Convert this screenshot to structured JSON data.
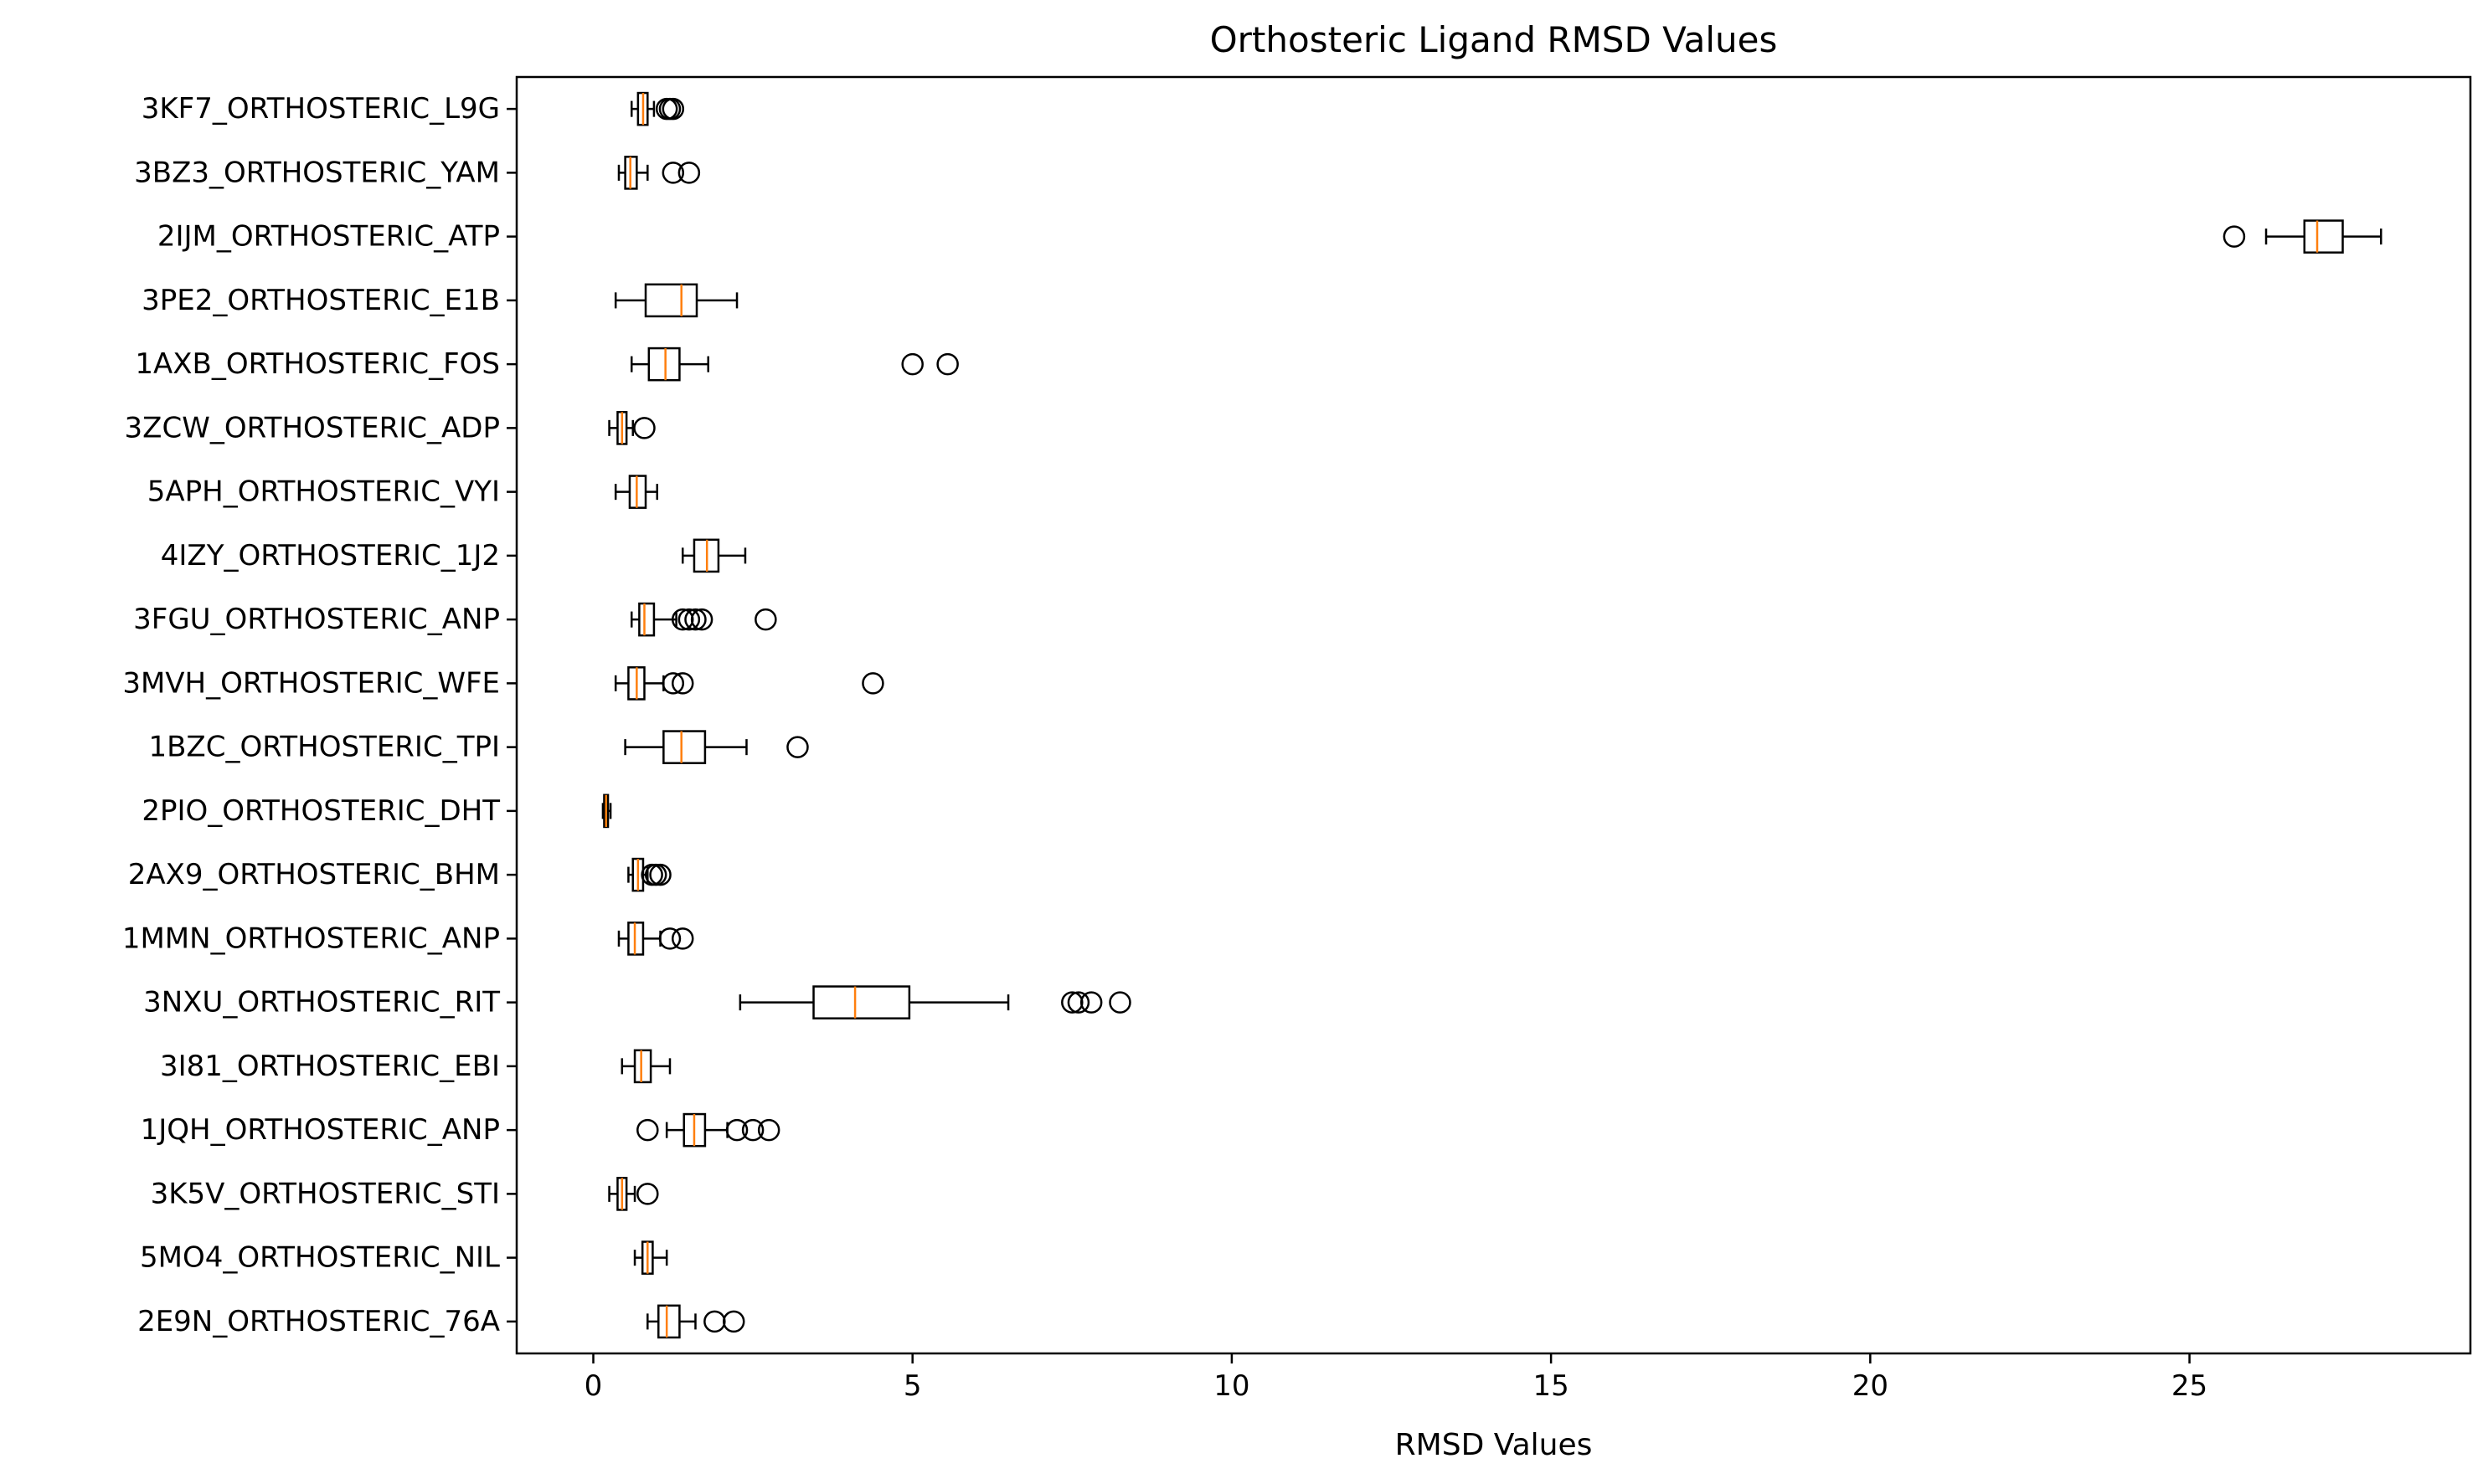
{
  "chart_data": {
    "type": "boxplot",
    "orientation": "horizontal",
    "title": "Orthosteric Ligand RMSD Values",
    "xlabel": "RMSD Values",
    "ylabel": "",
    "xlim": [
      -1.2,
      29.4
    ],
    "xticks": [
      0,
      5,
      10,
      15,
      20,
      25
    ],
    "grid": false,
    "colors": {
      "box": "#000000",
      "median": "#ff7f0e",
      "background": "#ffffff"
    },
    "categories": [
      "3KF7_ORTHOSTERIC_L9G",
      "3BZ3_ORTHOSTERIC_YAM",
      "2IJM_ORTHOSTERIC_ATP",
      "3PE2_ORTHOSTERIC_E1B",
      "1AXB_ORTHOSTERIC_FOS",
      "3ZCW_ORTHOSTERIC_ADP",
      "5APH_ORTHOSTERIC_VYI",
      "4IZY_ORTHOSTERIC_1J2",
      "3FGU_ORTHOSTERIC_ANP",
      "3MVH_ORTHOSTERIC_WFE",
      "1BZC_ORTHOSTERIC_TPI",
      "2PIO_ORTHOSTERIC_DHT",
      "2AX9_ORTHOSTERIC_BHM",
      "1MMN_ORTHOSTERIC_ANP",
      "3NXU_ORTHOSTERIC_RIT",
      "3I81_ORTHOSTERIC_EBI",
      "1JQH_ORTHOSTERIC_ANP",
      "3K5V_ORTHOSTERIC_STI",
      "5MO4_ORTHOSTERIC_NIL",
      "2E9N_ORTHOSTERIC_76A"
    ],
    "boxes": [
      {
        "whislo": 0.6,
        "q1": 0.7,
        "med": 0.78,
        "q3": 0.85,
        "whishi": 0.95,
        "fliers": [
          1.15,
          1.2,
          1.25
        ]
      },
      {
        "whislo": 0.4,
        "q1": 0.5,
        "med": 0.58,
        "q3": 0.68,
        "whishi": 0.85,
        "fliers": [
          1.25,
          1.5
        ]
      },
      {
        "whislo": 26.2,
        "q1": 26.8,
        "med": 27.0,
        "q3": 27.4,
        "whishi": 28.0,
        "fliers": [
          25.7
        ]
      },
      {
        "whislo": 0.35,
        "q1": 0.82,
        "med": 1.38,
        "q3": 1.62,
        "whishi": 2.25,
        "fliers": []
      },
      {
        "whislo": 0.6,
        "q1": 0.87,
        "med": 1.13,
        "q3": 1.35,
        "whishi": 1.8,
        "fliers": [
          5.0,
          5.55
        ]
      },
      {
        "whislo": 0.25,
        "q1": 0.38,
        "med": 0.45,
        "q3": 0.52,
        "whishi": 0.62,
        "fliers": [
          0.8
        ]
      },
      {
        "whislo": 0.35,
        "q1": 0.57,
        "med": 0.68,
        "q3": 0.82,
        "whishi": 1.0,
        "fliers": []
      },
      {
        "whislo": 1.4,
        "q1": 1.58,
        "med": 1.78,
        "q3": 1.96,
        "whishi": 2.38,
        "fliers": []
      },
      {
        "whislo": 0.6,
        "q1": 0.72,
        "med": 0.8,
        "q3": 0.95,
        "whishi": 1.3,
        "fliers": [
          1.4,
          1.5,
          1.6,
          1.7,
          2.7
        ]
      },
      {
        "whislo": 0.35,
        "q1": 0.55,
        "med": 0.68,
        "q3": 0.8,
        "whishi": 1.1,
        "fliers": [
          1.25,
          1.4,
          4.38
        ]
      },
      {
        "whislo": 0.5,
        "q1": 1.1,
        "med": 1.38,
        "q3": 1.75,
        "whishi": 2.4,
        "fliers": [
          3.2
        ]
      },
      {
        "whislo": 0.15,
        "q1": 0.17,
        "med": 0.2,
        "q3": 0.23,
        "whishi": 0.27,
        "fliers": []
      },
      {
        "whislo": 0.55,
        "q1": 0.62,
        "med": 0.7,
        "q3": 0.78,
        "whishi": 0.85,
        "fliers": [
          0.92,
          0.98,
          1.05
        ]
      },
      {
        "whislo": 0.4,
        "q1": 0.55,
        "med": 0.65,
        "q3": 0.78,
        "whishi": 1.05,
        "fliers": [
          1.2,
          1.4
        ]
      },
      {
        "whislo": 2.3,
        "q1": 3.45,
        "med": 4.1,
        "q3": 4.95,
        "whishi": 6.5,
        "fliers": [
          7.5,
          7.6,
          7.8,
          8.25
        ]
      },
      {
        "whislo": 0.45,
        "q1": 0.65,
        "med": 0.75,
        "q3": 0.9,
        "whishi": 1.2,
        "fliers": []
      },
      {
        "whislo": 1.15,
        "q1": 1.42,
        "med": 1.58,
        "q3": 1.75,
        "whishi": 2.1,
        "fliers": [
          0.85,
          2.25,
          2.5,
          2.75
        ]
      },
      {
        "whislo": 0.25,
        "q1": 0.38,
        "med": 0.45,
        "q3": 0.52,
        "whishi": 0.65,
        "fliers": [
          0.85
        ]
      },
      {
        "whislo": 0.65,
        "q1": 0.77,
        "med": 0.85,
        "q3": 0.93,
        "whishi": 1.15,
        "fliers": []
      },
      {
        "whislo": 0.85,
        "q1": 1.02,
        "med": 1.15,
        "q3": 1.35,
        "whishi": 1.6,
        "fliers": [
          1.9,
          2.2
        ]
      }
    ]
  }
}
